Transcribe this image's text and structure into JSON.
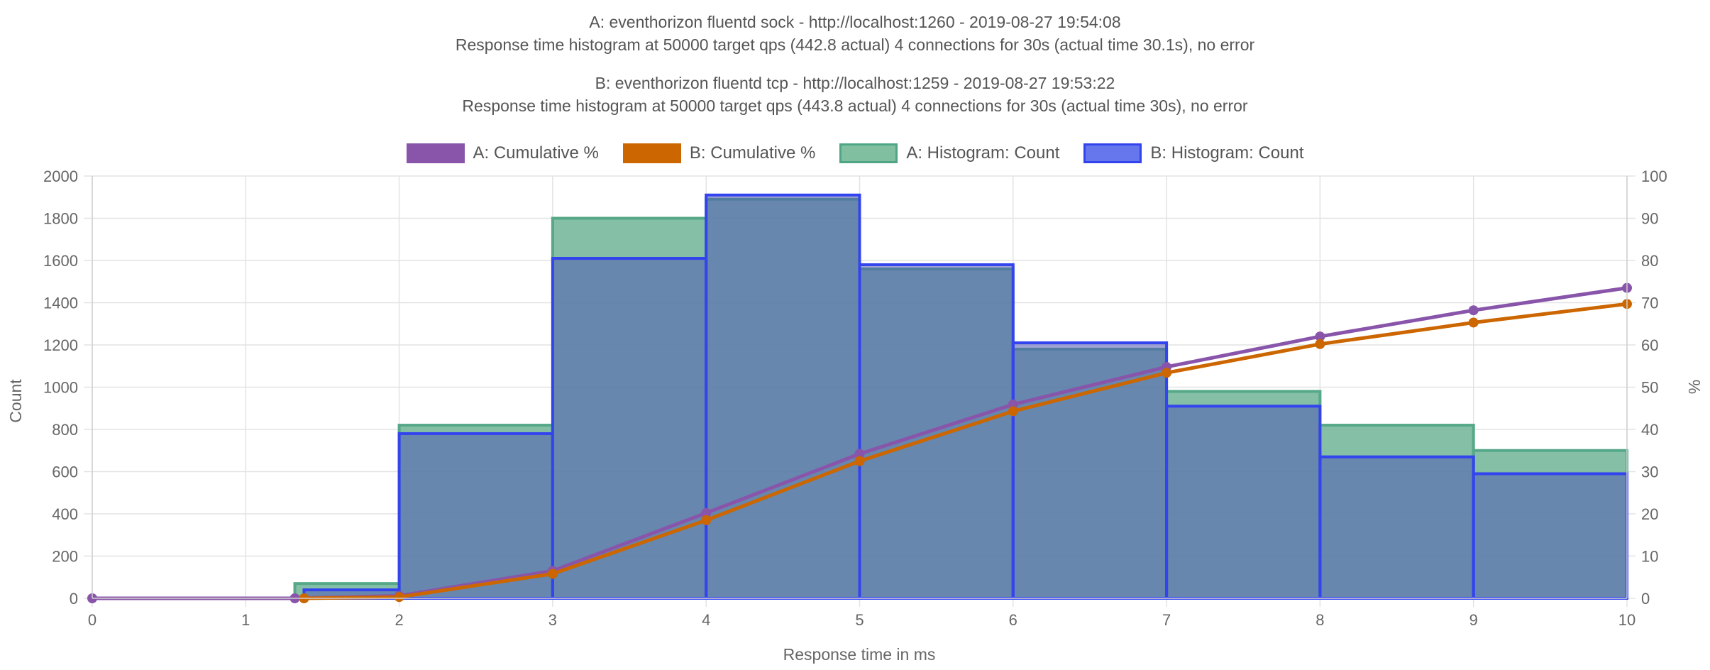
{
  "titles": {
    "a_line1": "A: eventhorizon fluentd sock - http://localhost:1260 - 2019-08-27 19:54:08",
    "a_line2": "Response time histogram at 50000 target qps (442.8 actual) 4 connections for 30s (actual time 30.1s), no error",
    "b_line1": "B: eventhorizon fluentd tcp - http://localhost:1259 - 2019-08-27 19:53:22",
    "b_line2": "Response time histogram at 50000 target qps (443.8 actual) 4 connections for 30s (actual time 30s), no error"
  },
  "legend": [
    {
      "label": "A: Cumulative %",
      "fill": "#8855aa",
      "border": "#8855aa"
    },
    {
      "label": "B: Cumulative %",
      "fill": "#cc6600",
      "border": "#cc6600"
    },
    {
      "label": "A: Histogram: Count",
      "fill": "#80bfa0",
      "border": "#4ea685"
    },
    {
      "label": "B: Histogram: Count",
      "fill": "#6677ee",
      "border": "#3344ee"
    }
  ],
  "chart_data": {
    "type": "area",
    "xlabel": "Response time in ms",
    "ylabel_left": "Count",
    "ylabel_right": "%",
    "xlim": [
      0,
      10
    ],
    "ylim_left": [
      0,
      2000
    ],
    "ylim_right": [
      0,
      100
    ],
    "x_ticks": [
      0,
      1,
      2,
      3,
      4,
      5,
      6,
      7,
      8,
      9,
      10
    ],
    "y_left_ticks": [
      0,
      200,
      400,
      600,
      800,
      1000,
      1200,
      1400,
      1600,
      1800,
      2000
    ],
    "y_right_ticks": [
      0,
      10,
      20,
      30,
      40,
      50,
      60,
      70,
      80,
      90,
      100
    ],
    "grid": true,
    "legend_position": "top",
    "histograms": [
      {
        "name": "A: Histogram: Count",
        "fill": "rgba(110,180,150,0.85)",
        "stroke": "#55a888",
        "bins": [
          {
            "start": 0,
            "end": 1.32,
            "count": 0
          },
          {
            "start": 1.32,
            "end": 2,
            "count": 70
          },
          {
            "start": 2,
            "end": 3,
            "count": 820
          },
          {
            "start": 3,
            "end": 4,
            "count": 1800
          },
          {
            "start": 4,
            "end": 5,
            "count": 1890
          },
          {
            "start": 5,
            "end": 6,
            "count": 1560
          },
          {
            "start": 6,
            "end": 7,
            "count": 1180
          },
          {
            "start": 7,
            "end": 8,
            "count": 980
          },
          {
            "start": 8,
            "end": 9,
            "count": 820
          },
          {
            "start": 9,
            "end": 10,
            "count": 700
          }
        ]
      },
      {
        "name": "B: Histogram: Count",
        "fill": "rgba(80,90,180,0.55)",
        "stroke": "#3344ee",
        "bins": [
          {
            "start": 0,
            "end": 1.38,
            "count": 0
          },
          {
            "start": 1.38,
            "end": 2,
            "count": 40
          },
          {
            "start": 2,
            "end": 3,
            "count": 780
          },
          {
            "start": 3,
            "end": 4,
            "count": 1610
          },
          {
            "start": 4,
            "end": 5,
            "count": 1910
          },
          {
            "start": 5,
            "end": 6,
            "count": 1580
          },
          {
            "start": 6,
            "end": 7,
            "count": 1210
          },
          {
            "start": 7,
            "end": 8,
            "count": 910
          },
          {
            "start": 8,
            "end": 9,
            "count": 670
          },
          {
            "start": 9,
            "end": 10,
            "count": 590
          }
        ]
      }
    ],
    "series": [
      {
        "name": "A: Cumulative %",
        "color": "#8855aa",
        "points": [
          [
            0,
            0
          ],
          [
            1.32,
            0
          ],
          [
            2,
            0.6
          ],
          [
            3,
            6.5
          ],
          [
            4,
            20.2
          ],
          [
            5,
            34.2
          ],
          [
            6,
            45.9
          ],
          [
            7,
            54.8
          ],
          [
            8,
            62
          ],
          [
            9,
            68.2
          ],
          [
            10,
            73.5
          ]
        ]
      },
      {
        "name": "B: Cumulative %",
        "color": "#cc6600",
        "points": [
          [
            1.38,
            0
          ],
          [
            2,
            0.3
          ],
          [
            3,
            5.8
          ],
          [
            4,
            18.5
          ],
          [
            5,
            32.5
          ],
          [
            6,
            44.3
          ],
          [
            7,
            53.4
          ],
          [
            8,
            60.2
          ],
          [
            9,
            65.3
          ],
          [
            10,
            69.7
          ]
        ]
      }
    ]
  }
}
